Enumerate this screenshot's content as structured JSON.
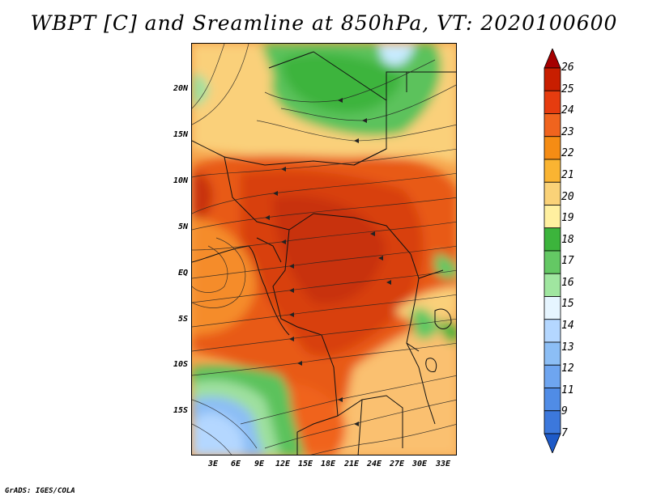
{
  "title": "WBPT [C] and Sreamline at 850hPa, VT: 2020100600",
  "credit": "GrADS: IGES/COLA",
  "map": {
    "lat_labels": [
      "20N",
      "15N",
      "10N",
      "5N",
      "EQ",
      "5S",
      "10S",
      "15S"
    ],
    "lon_labels": [
      "3E",
      "6E",
      "9E",
      "12E",
      "15E",
      "18E",
      "21E",
      "24E",
      "27E",
      "30E",
      "33E"
    ],
    "field": "wet-bulb potential temperature",
    "overlay": "streamlines"
  },
  "colorbar": {
    "levels": [
      "26",
      "25",
      "24",
      "23",
      "22",
      "21",
      "20",
      "19",
      "18",
      "17",
      "16",
      "15",
      "14",
      "13",
      "12",
      "11",
      "9",
      "7"
    ],
    "colors": [
      "#a50000",
      "#c81e00",
      "#e63c0f",
      "#f0641e",
      "#f58c14",
      "#fab432",
      "#fad278",
      "#fff0a0",
      "#3cb43c",
      "#64c864",
      "#a0e6a0",
      "#e6f5ff",
      "#b4d7ff",
      "#8cbef5",
      "#6ea5f0",
      "#508ce6",
      "#3c78dc",
      "#1e5ac8"
    ]
  }
}
